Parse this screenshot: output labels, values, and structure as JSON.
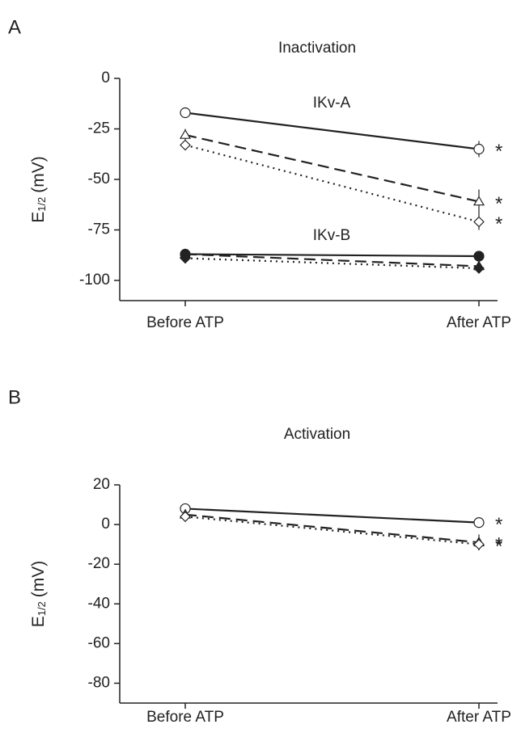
{
  "chart_data": [
    {
      "type": "line",
      "panel_label": "A",
      "title": "Inactivation",
      "ylabel_main": "E",
      "ylabel_sub": "1/2",
      "ylabel_unit": "(mV)",
      "categories": [
        "Before ATP",
        "After ATP"
      ],
      "ylim": [
        -110,
        0
      ],
      "yticks": [
        0,
        -25,
        -50,
        -75,
        -100
      ],
      "annotations": [
        "IKv-A",
        "IKv-B"
      ],
      "series": [
        {
          "color": "#222",
          "marker": "circle",
          "filled": false,
          "dash": "solid",
          "values": [
            -17,
            -35
          ],
          "errors": [
            2,
            4
          ],
          "significance": "*"
        },
        {
          "color": "#222",
          "marker": "triangle",
          "filled": false,
          "dash": "dashed",
          "values": [
            -28,
            -61
          ],
          "errors": [
            3,
            6
          ],
          "significance": "*"
        },
        {
          "color": "#222",
          "marker": "diamond",
          "filled": false,
          "dash": "dotted",
          "values": [
            -33,
            -71
          ],
          "errors": [
            2,
            4
          ],
          "significance": "*"
        },
        {
          "color": "#222",
          "marker": "circle",
          "filled": true,
          "dash": "solid",
          "values": [
            -87,
            -88
          ],
          "errors": [
            1,
            1
          ]
        },
        {
          "color": "#222",
          "marker": "triangle",
          "filled": true,
          "dash": "dashed",
          "values": [
            -87,
            -93
          ],
          "errors": [
            1,
            1
          ]
        },
        {
          "color": "#222",
          "marker": "diamond",
          "filled": true,
          "dash": "dotted",
          "values": [
            -89,
            -94
          ],
          "errors": [
            1,
            1
          ]
        }
      ]
    },
    {
      "type": "line",
      "panel_label": "B",
      "title": "Activation",
      "ylabel_main": "E",
      "ylabel_sub": "1/2",
      "ylabel_unit": "(mV)",
      "categories": [
        "Before ATP",
        "After ATP"
      ],
      "ylim": [
        -90,
        20
      ],
      "yticks": [
        20,
        0,
        -20,
        -40,
        -60,
        -80
      ],
      "series": [
        {
          "color": "#222",
          "marker": "circle",
          "filled": false,
          "dash": "solid",
          "values": [
            8,
            1
          ],
          "errors": [
            1,
            2
          ],
          "significance": "*"
        },
        {
          "color": "#222",
          "marker": "triangle",
          "filled": false,
          "dash": "dashed",
          "values": [
            5,
            -9
          ],
          "errors": [
            2,
            4
          ],
          "significance": "*"
        },
        {
          "color": "#222",
          "marker": "diamond",
          "filled": false,
          "dash": "dotted",
          "values": [
            4,
            -10
          ],
          "errors": [
            2,
            3
          ],
          "significance": "*"
        }
      ]
    }
  ]
}
